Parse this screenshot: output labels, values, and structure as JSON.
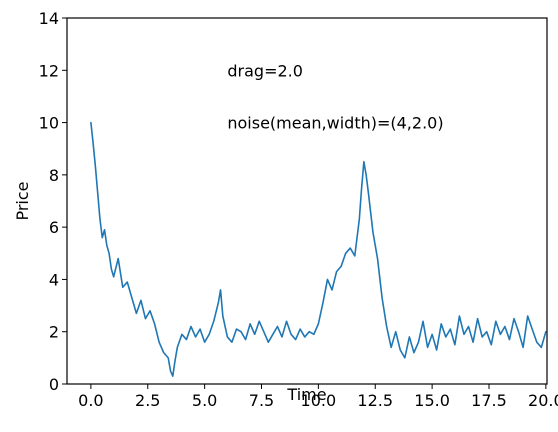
{
  "chart_data": {
    "type": "line",
    "title": "",
    "xlabel": "Time",
    "ylabel": "Price",
    "xlim": [
      -1.05,
      20.05
    ],
    "ylim": [
      0,
      14
    ],
    "x_ticks": [
      0.0,
      2.5,
      5.0,
      7.5,
      10.0,
      12.5,
      15.0,
      17.5,
      20.0
    ],
    "x_tick_labels": [
      "0.0",
      "2.5",
      "5.0",
      "7.5",
      "10.0",
      "12.5",
      "15.0",
      "17.5",
      "20.0"
    ],
    "y_ticks": [
      0,
      2,
      4,
      6,
      8,
      10,
      12,
      14
    ],
    "y_tick_labels": [
      "0",
      "2",
      "4",
      "6",
      "8",
      "10",
      "12",
      "14"
    ],
    "grid": false,
    "line_color": "#1f77b4",
    "annotations": [
      {
        "text": "drag=2.0",
        "x": 6.0,
        "y": 12.0
      },
      {
        "text": "noise(mean,width)=(4,2.0)",
        "x": 6.0,
        "y": 10.0
      }
    ],
    "series": [
      {
        "x": [
          0.0,
          0.1,
          0.2,
          0.3,
          0.4,
          0.5,
          0.6,
          0.7,
          0.8,
          0.9,
          1.0,
          1.2,
          1.4,
          1.6,
          1.8,
          2.0,
          2.2,
          2.4,
          2.6,
          2.8,
          3.0,
          3.2,
          3.4,
          3.5,
          3.6,
          3.7,
          3.8,
          4.0,
          4.2,
          4.4,
          4.6,
          4.8,
          5.0,
          5.2,
          5.4,
          5.6,
          5.7,
          5.8,
          6.0,
          6.2,
          6.4,
          6.6,
          6.8,
          7.0,
          7.2,
          7.4,
          7.6,
          7.8,
          8.0,
          8.2,
          8.4,
          8.6,
          8.8,
          9.0,
          9.2,
          9.4,
          9.6,
          9.8,
          10.0,
          10.2,
          10.4,
          10.6,
          10.8,
          11.0,
          11.2,
          11.4,
          11.6,
          11.8,
          11.9,
          12.0,
          12.1,
          12.2,
          12.4,
          12.6,
          12.8,
          13.0,
          13.2,
          13.4,
          13.6,
          13.8,
          14.0,
          14.2,
          14.4,
          14.6,
          14.8,
          15.0,
          15.2,
          15.4,
          15.6,
          15.8,
          16.0,
          16.2,
          16.4,
          16.6,
          16.8,
          17.0,
          17.2,
          17.4,
          17.6,
          17.8,
          18.0,
          18.2,
          18.4,
          18.6,
          18.8,
          19.0,
          19.2,
          19.4,
          19.6,
          19.8,
          20.0
        ],
        "y": [
          10.0,
          9.2,
          8.3,
          7.3,
          6.3,
          5.6,
          5.9,
          5.3,
          5.0,
          4.4,
          4.1,
          4.8,
          3.7,
          3.9,
          3.3,
          2.7,
          3.2,
          2.5,
          2.8,
          2.3,
          1.6,
          1.2,
          1.0,
          0.5,
          0.3,
          0.9,
          1.4,
          1.9,
          1.7,
          2.2,
          1.8,
          2.1,
          1.6,
          1.9,
          2.4,
          3.1,
          3.6,
          2.6,
          1.8,
          1.6,
          2.1,
          2.0,
          1.7,
          2.3,
          1.9,
          2.4,
          2.0,
          1.6,
          1.9,
          2.2,
          1.8,
          2.4,
          1.9,
          1.7,
          2.1,
          1.8,
          2.0,
          1.9,
          2.3,
          3.1,
          4.0,
          3.6,
          4.3,
          4.5,
          5.0,
          5.2,
          4.9,
          6.3,
          7.5,
          8.5,
          8.0,
          7.3,
          5.8,
          4.8,
          3.3,
          2.2,
          1.4,
          2.0,
          1.3,
          1.0,
          1.8,
          1.2,
          1.6,
          2.4,
          1.4,
          1.9,
          1.3,
          2.3,
          1.8,
          2.1,
          1.5,
          2.6,
          1.9,
          2.2,
          1.6,
          2.5,
          1.8,
          2.0,
          1.5,
          2.4,
          1.9,
          2.2,
          1.7,
          2.5,
          2.0,
          1.4,
          2.6,
          2.1,
          1.6,
          1.4,
          2.0
        ]
      }
    ]
  }
}
